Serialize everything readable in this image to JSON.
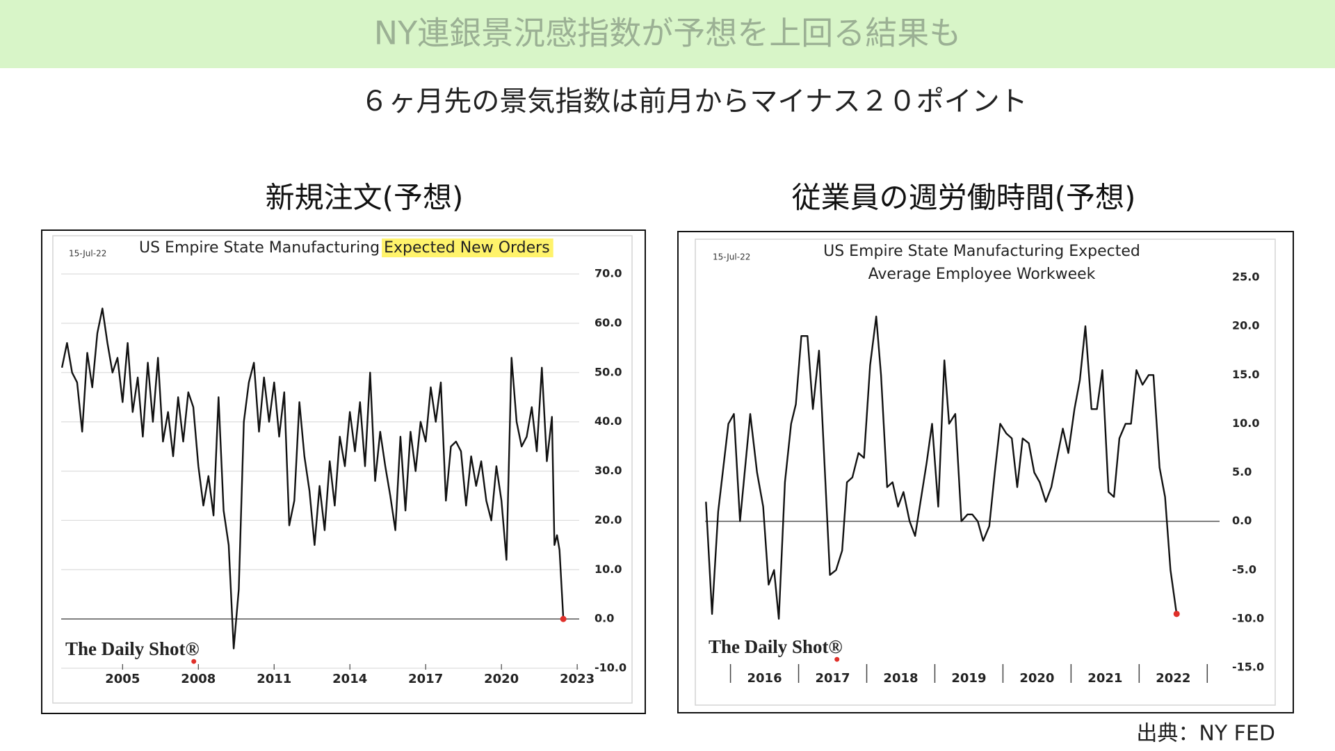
{
  "header": {
    "title": "NY連銀景況感指数が予想を上回る結果も",
    "subtitle": "６ヶ月先の景気指数は前月からマイナス２０ポイント"
  },
  "source": "出典：NY FED",
  "chart_data": [
    {
      "type": "line",
      "heading": "新規注文(予想)",
      "title": "US Empire State Manufacturing",
      "title_highlight": "Expected New Orders",
      "date_label": "15-Jul-22",
      "watermark": "The Daily Shot®",
      "color": "#111111",
      "marker_color": "#e0302a",
      "highlight_color": "#fff36b",
      "grid": true,
      "zero_line": true,
      "xlim": [
        2002.5,
        2023.5
      ],
      "xticks": [
        2005,
        2008,
        2011,
        2014,
        2017,
        2020,
        2023
      ],
      "ylim": [
        -10,
        70
      ],
      "yticks": [
        {
          "value": -10,
          "label": "-10.0"
        },
        {
          "value": 0,
          "label": "0.0"
        },
        {
          "value": 10,
          "label": "10.0"
        },
        {
          "value": 20,
          "label": "20.0"
        },
        {
          "value": 30,
          "label": "30.0"
        },
        {
          "value": 40,
          "label": "40.0"
        },
        {
          "value": 50,
          "label": "50.0"
        },
        {
          "value": 60,
          "label": "60.0"
        },
        {
          "value": 70,
          "label": "70.0"
        }
      ],
      "x": [
        2002.6,
        2002.8,
        2003.0,
        2003.2,
        2003.4,
        2003.6,
        2003.8,
        2004.0,
        2004.2,
        2004.4,
        2004.6,
        2004.8,
        2005.0,
        2005.2,
        2005.4,
        2005.6,
        2005.8,
        2006.0,
        2006.2,
        2006.4,
        2006.6,
        2006.8,
        2007.0,
        2007.2,
        2007.4,
        2007.6,
        2007.8,
        2008.0,
        2008.2,
        2008.4,
        2008.6,
        2008.8,
        2009.0,
        2009.2,
        2009.4,
        2009.6,
        2009.8,
        2010.0,
        2010.2,
        2010.4,
        2010.6,
        2010.8,
        2011.0,
        2011.2,
        2011.4,
        2011.6,
        2011.8,
        2012.0,
        2012.2,
        2012.4,
        2012.6,
        2012.8,
        2013.0,
        2013.2,
        2013.4,
        2013.6,
        2013.8,
        2014.0,
        2014.2,
        2014.4,
        2014.6,
        2014.8,
        2015.0,
        2015.2,
        2015.4,
        2015.6,
        2015.8,
        2016.0,
        2016.2,
        2016.4,
        2016.6,
        2016.8,
        2017.0,
        2017.2,
        2017.4,
        2017.6,
        2017.8,
        2018.0,
        2018.2,
        2018.4,
        2018.6,
        2018.8,
        2019.0,
        2019.2,
        2019.4,
        2019.6,
        2019.8,
        2020.0,
        2020.2,
        2020.4,
        2020.6,
        2020.8,
        2021.0,
        2021.2,
        2021.4,
        2021.6,
        2021.8,
        2022.0,
        2022.1,
        2022.2,
        2022.3,
        2022.45
      ],
      "values": [
        51,
        56,
        50,
        48,
        38,
        54,
        47,
        58,
        63,
        56,
        50,
        53,
        44,
        56,
        42,
        49,
        37,
        52,
        40,
        53,
        36,
        42,
        33,
        45,
        36,
        46,
        43,
        31,
        23,
        29,
        21,
        45,
        22,
        15,
        -6,
        6,
        40,
        48,
        52,
        38,
        49,
        40,
        48,
        37,
        46,
        19,
        24,
        44,
        33,
        26,
        15,
        27,
        18,
        32,
        23,
        37,
        31,
        42,
        34,
        44,
        31,
        50,
        28,
        38,
        31,
        25,
        18,
        37,
        22,
        38,
        30,
        40,
        36,
        47,
        40,
        48,
        24,
        35,
        36,
        34,
        23,
        33,
        27,
        32,
        24,
        20,
        31,
        24,
        12,
        53,
        40,
        35,
        37,
        43,
        34,
        51,
        32,
        41,
        15,
        17,
        14,
        0
      ]
    },
    {
      "type": "line",
      "heading": "従業員の週労働時間(予想)",
      "title": [
        "US Empire State Manufacturing Expected",
        "Average Employee Workweek"
      ],
      "date_label": "15-Jul-22",
      "watermark": "The Daily Shot®",
      "color": "#111111",
      "marker_color": "#e0302a",
      "grid": false,
      "zero_line": true,
      "xlim": [
        2015.5,
        2023.15
      ],
      "xticks": [
        {
          "value": 2016.5,
          "label": "2016"
        },
        {
          "value": 2017.5,
          "label": "2017"
        },
        {
          "value": 2018.5,
          "label": "2018"
        },
        {
          "value": 2019.5,
          "label": "2019"
        },
        {
          "value": 2020.5,
          "label": "2020"
        },
        {
          "value": 2021.5,
          "label": "2021"
        },
        {
          "value": 2022.5,
          "label": "2022"
        }
      ],
      "ylim": [
        -15,
        25
      ],
      "yticks": [
        {
          "value": -15,
          "label": "-15.0"
        },
        {
          "value": -10,
          "label": "-10.0"
        },
        {
          "value": -5,
          "label": "-5.0"
        },
        {
          "value": 0,
          "label": "0.0"
        },
        {
          "value": 5,
          "label": "5.0"
        },
        {
          "value": 10,
          "label": "10.0"
        },
        {
          "value": 15,
          "label": "15.0"
        },
        {
          "value": 20,
          "label": "20.0"
        },
        {
          "value": 25,
          "label": "25.0"
        }
      ],
      "x": [
        2015.64,
        2015.73,
        2015.82,
        2015.97,
        2016.05,
        2016.14,
        2016.29,
        2016.39,
        2016.48,
        2016.56,
        2016.64,
        2016.71,
        2016.8,
        2016.89,
        2016.96,
        2017.04,
        2017.13,
        2017.21,
        2017.3,
        2017.46,
        2017.55,
        2017.64,
        2017.71,
        2017.79,
        2017.88,
        2017.96,
        2018.05,
        2018.14,
        2018.21,
        2018.3,
        2018.38,
        2018.46,
        2018.54,
        2018.63,
        2018.71,
        2018.88,
        2018.96,
        2019.05,
        2019.14,
        2019.21,
        2019.3,
        2019.39,
        2019.48,
        2019.55,
        2019.63,
        2019.71,
        2019.8,
        2019.88,
        2019.96,
        2020.05,
        2020.13,
        2020.21,
        2020.29,
        2020.38,
        2020.46,
        2020.54,
        2020.63,
        2020.71,
        2020.88,
        2020.96,
        2021.05,
        2021.13,
        2021.21,
        2021.3,
        2021.38,
        2021.46,
        2021.55,
        2021.63,
        2021.71,
        2021.8,
        2021.88,
        2021.96,
        2022.05,
        2022.14,
        2022.21,
        2022.3,
        2022.38,
        2022.46,
        2022.55
      ],
      "values": [
        2,
        -9.5,
        1,
        10,
        11,
        0,
        11,
        5,
        1.5,
        -6.5,
        -5,
        -10,
        4,
        10,
        12,
        19,
        19,
        11.5,
        17.5,
        -5.5,
        -5,
        -3,
        4,
        4.5,
        7,
        6.5,
        16,
        21,
        15,
        3.5,
        4,
        1.5,
        3,
        0,
        -1.5,
        6,
        10,
        1.5,
        16.5,
        10,
        11,
        0,
        0.7,
        0.7,
        0,
        -2,
        -0.5,
        5,
        10,
        9,
        8.5,
        3.5,
        8.5,
        8,
        5,
        4,
        2,
        3.5,
        9.5,
        7,
        11.5,
        14.5,
        20,
        11.5,
        11.5,
        15.5,
        3,
        2.5,
        8.5,
        10,
        10,
        15.5,
        14,
        15,
        15,
        5.5,
        2.5,
        -5,
        -9.5
      ]
    }
  ]
}
